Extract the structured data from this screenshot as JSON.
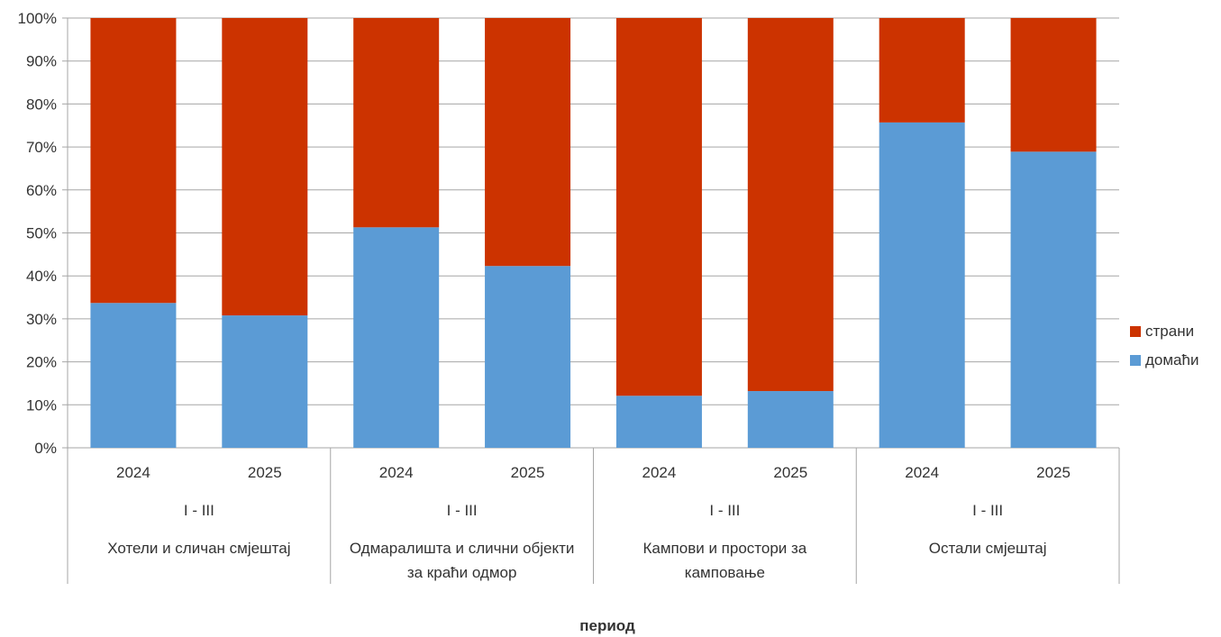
{
  "chart_data": {
    "type": "bar",
    "stacked": "percent",
    "xlabel": "период",
    "ylim": [
      0,
      100
    ],
    "yticks": [
      "0%",
      "10%",
      "20%",
      "30%",
      "40%",
      "50%",
      "60%",
      "70%",
      "80%",
      "90%",
      "100%"
    ],
    "grid": true,
    "legend_position": "right",
    "categories": [
      "2024",
      "2025",
      "2024",
      "2025",
      "2024",
      "2025",
      "2024",
      "2025"
    ],
    "period_labels": [
      "I - III",
      "I - III",
      "I - III",
      "I - III"
    ],
    "groups": [
      {
        "name": "Хотели и сличан смјештај",
        "lines": [
          "Хотели и сличан смјештај"
        ]
      },
      {
        "name": "Одмаралишта и слични објекти за краћи одмор",
        "lines": [
          "Одмаралишта и слични објекти",
          "за краћи одмор"
        ]
      },
      {
        "name": "Кампови и простори за камповање",
        "lines": [
          "Кампови и простори за",
          "камповање"
        ]
      },
      {
        "name": "Остали смјештај",
        "lines": [
          "Остали смјештај"
        ]
      }
    ],
    "series": [
      {
        "name": "домаћи",
        "color": "#5B9BD5",
        "values": [
          33.7,
          30.8,
          51.3,
          42.3,
          12.1,
          13.2,
          75.7,
          68.9
        ]
      },
      {
        "name": "страни",
        "color": "#CC3300",
        "values": [
          66.3,
          69.2,
          48.7,
          57.7,
          87.9,
          86.8,
          24.3,
          31.1
        ]
      }
    ],
    "legend_order": [
      "страни",
      "домаћи"
    ]
  }
}
